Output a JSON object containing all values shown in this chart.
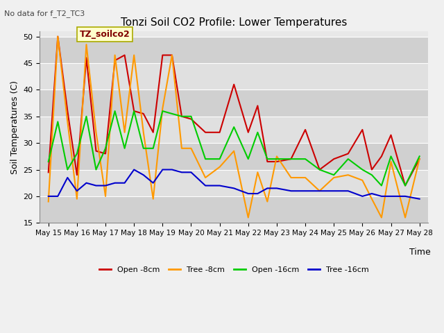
{
  "title": "Tonzi Soil CO2 Profile: Lower Temperatures",
  "subtitle": "No data for f_T2_TC3",
  "ylabel": "Soil Temperatures (C)",
  "xlabel": "Time",
  "annotation": "TZ_soilco2",
  "ylim": [
    15,
    51
  ],
  "yticks": [
    15,
    20,
    25,
    30,
    35,
    40,
    45,
    50
  ],
  "xtick_labels": [
    "May 15",
    "May 16",
    "May 17",
    "May 18",
    "May 19",
    "May 20",
    "May 21",
    "May 22",
    "May 23",
    "May 24",
    "May 25",
    "May 26",
    "May 27",
    "May 28"
  ],
  "plot_bg_color": "#e8e8e8",
  "fig_bg_color": "#f0f0f0",
  "series": {
    "open_8cm": {
      "label": "Open -8cm",
      "color": "#cc0000",
      "x": [
        0.0,
        0.33,
        0.67,
        1.0,
        1.33,
        1.67,
        2.0,
        2.33,
        2.67,
        3.0,
        3.33,
        3.67,
        4.0,
        4.33,
        4.67,
        5.0,
        5.5,
        6.0,
        6.5,
        7.0,
        7.33,
        7.67,
        8.0,
        8.5,
        9.0,
        9.5,
        10.0,
        10.5,
        11.0,
        11.33,
        11.67,
        12.0,
        12.5,
        13.0
      ],
      "y": [
        24.5,
        50.0,
        36.0,
        24.0,
        46.0,
        28.5,
        28.0,
        45.5,
        46.5,
        36.0,
        35.5,
        32.0,
        46.5,
        46.5,
        35.0,
        34.5,
        32.0,
        32.0,
        41.0,
        32.0,
        37.0,
        26.5,
        26.5,
        27.0,
        32.5,
        25.0,
        27.0,
        28.0,
        32.5,
        25.0,
        27.5,
        31.5,
        22.0,
        27.0
      ]
    },
    "tree_8cm": {
      "label": "Tree -8cm",
      "color": "#ff9900",
      "x": [
        0.0,
        0.33,
        0.67,
        1.0,
        1.33,
        1.67,
        2.0,
        2.33,
        2.67,
        3.0,
        3.33,
        3.67,
        4.0,
        4.33,
        4.67,
        5.0,
        5.5,
        6.0,
        6.5,
        7.0,
        7.33,
        7.67,
        8.0,
        8.5,
        9.0,
        9.5,
        10.0,
        10.5,
        11.0,
        11.33,
        11.67,
        12.0,
        12.5,
        13.0
      ],
      "y": [
        19.0,
        50.0,
        34.0,
        19.5,
        48.5,
        32.0,
        20.0,
        46.5,
        32.0,
        46.5,
        32.0,
        19.5,
        36.5,
        46.5,
        29.0,
        29.0,
        23.5,
        25.5,
        28.5,
        16.0,
        24.5,
        19.0,
        27.5,
        23.5,
        23.5,
        21.0,
        23.5,
        24.0,
        23.0,
        19.5,
        16.0,
        26.5,
        16.0,
        27.0
      ]
    },
    "open_16cm": {
      "label": "Open -16cm",
      "color": "#00cc00",
      "x": [
        0.0,
        0.33,
        0.67,
        1.0,
        1.33,
        1.67,
        2.0,
        2.33,
        2.67,
        3.0,
        3.33,
        3.67,
        4.0,
        4.33,
        4.67,
        5.0,
        5.5,
        6.0,
        6.5,
        7.0,
        7.33,
        7.67,
        8.0,
        8.5,
        9.0,
        9.5,
        10.0,
        10.5,
        11.0,
        11.33,
        11.67,
        12.0,
        12.5,
        13.0
      ],
      "y": [
        26.5,
        34.0,
        25.0,
        28.0,
        35.0,
        25.0,
        29.0,
        36.0,
        29.0,
        36.0,
        29.0,
        29.0,
        36.0,
        35.5,
        35.0,
        35.0,
        27.0,
        27.0,
        33.0,
        27.0,
        32.0,
        27.0,
        27.0,
        27.0,
        27.0,
        25.0,
        24.0,
        27.0,
        25.0,
        24.0,
        22.0,
        27.5,
        22.0,
        27.5
      ]
    },
    "tree_16cm": {
      "label": "Tree -16cm",
      "color": "#0000cc",
      "x": [
        0.0,
        0.33,
        0.67,
        1.0,
        1.33,
        1.67,
        2.0,
        2.33,
        2.67,
        3.0,
        3.33,
        3.67,
        4.0,
        4.33,
        4.67,
        5.0,
        5.5,
        6.0,
        6.5,
        7.0,
        7.33,
        7.67,
        8.0,
        8.5,
        9.0,
        9.5,
        10.0,
        10.5,
        11.0,
        11.33,
        11.67,
        12.0,
        12.5,
        13.0
      ],
      "y": [
        20.0,
        20.0,
        23.5,
        21.0,
        22.5,
        22.0,
        22.0,
        22.5,
        22.5,
        25.0,
        24.0,
        22.5,
        25.0,
        25.0,
        24.5,
        24.5,
        22.0,
        22.0,
        21.5,
        20.5,
        20.5,
        21.5,
        21.5,
        21.0,
        21.0,
        21.0,
        21.0,
        21.0,
        20.0,
        20.5,
        20.0,
        20.0,
        20.0,
        19.5
      ]
    }
  }
}
